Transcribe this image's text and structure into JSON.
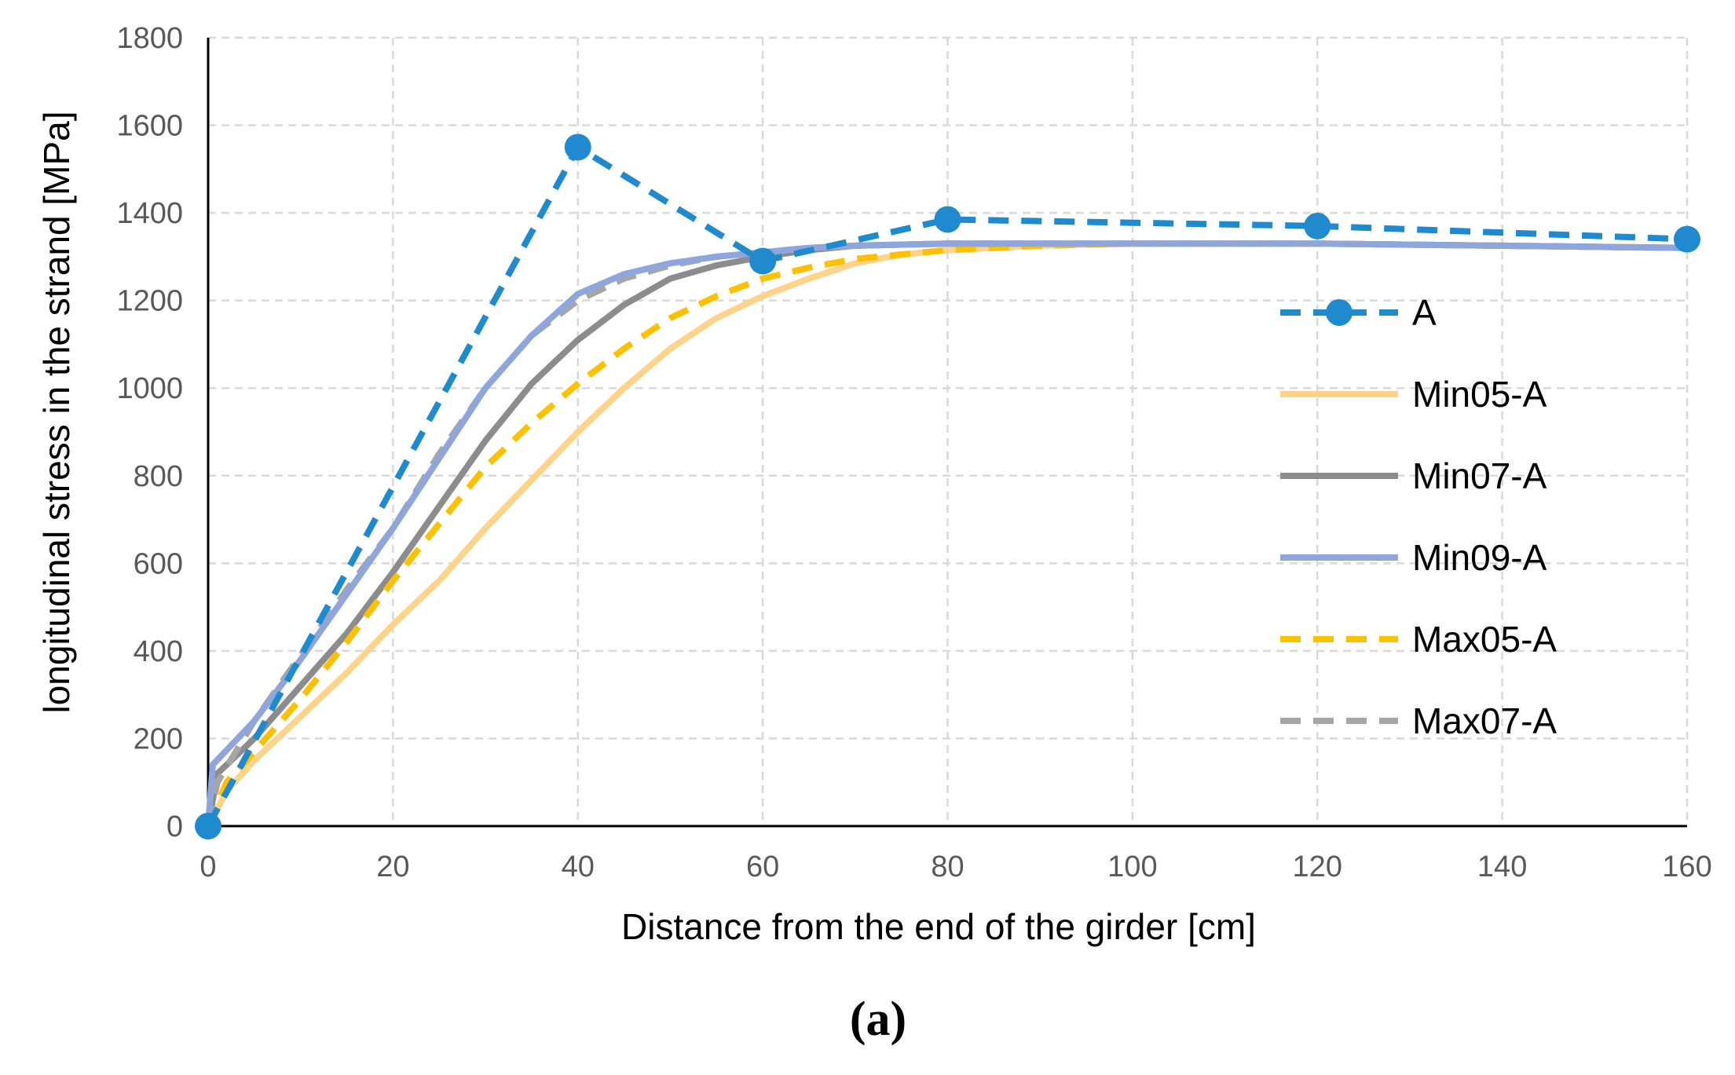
{
  "chart_data": {
    "type": "line",
    "caption": "(a)",
    "xlabel": "Distance from the end of the girder [cm]",
    "ylabel": "longitudinal stress in the strand [MPa]",
    "xlim": [
      0,
      160
    ],
    "ylim": [
      0,
      1800
    ],
    "xticks": [
      0,
      20,
      40,
      60,
      80,
      100,
      120,
      140,
      160
    ],
    "yticks": [
      0,
      200,
      400,
      600,
      800,
      1000,
      1200,
      1400,
      1600,
      1800
    ],
    "grid": true,
    "legend_position": "right",
    "series": [
      {
        "name": "A",
        "color": "#1F8ACD",
        "style": "dashed",
        "markers": true,
        "points": [
          [
            0,
            0
          ],
          [
            40,
            1550
          ],
          [
            60,
            1290
          ],
          [
            80,
            1385
          ],
          [
            120,
            1370
          ],
          [
            160,
            1340
          ]
        ]
      },
      {
        "name": "Min05-A",
        "color": "#FFD38A",
        "style": "solid",
        "markers": false,
        "points": [
          [
            0,
            0
          ],
          [
            2,
            80
          ],
          [
            5,
            150
          ],
          [
            10,
            250
          ],
          [
            15,
            350
          ],
          [
            20,
            460
          ],
          [
            25,
            560
          ],
          [
            30,
            680
          ],
          [
            35,
            790
          ],
          [
            40,
            900
          ],
          [
            45,
            1000
          ],
          [
            50,
            1090
          ],
          [
            55,
            1160
          ],
          [
            60,
            1210
          ],
          [
            65,
            1250
          ],
          [
            70,
            1285
          ],
          [
            75,
            1305
          ],
          [
            80,
            1315
          ],
          [
            90,
            1325
          ],
          [
            100,
            1330
          ],
          [
            120,
            1330
          ],
          [
            140,
            1325
          ],
          [
            160,
            1320
          ]
        ]
      },
      {
        "name": "Min07-A",
        "color": "#8C8C8C",
        "style": "solid",
        "markers": false,
        "points": [
          [
            0,
            0
          ],
          [
            1,
            120
          ],
          [
            5,
            200
          ],
          [
            10,
            320
          ],
          [
            15,
            440
          ],
          [
            20,
            580
          ],
          [
            25,
            730
          ],
          [
            30,
            880
          ],
          [
            35,
            1010
          ],
          [
            40,
            1110
          ],
          [
            45,
            1190
          ],
          [
            50,
            1250
          ],
          [
            55,
            1280
          ],
          [
            60,
            1300
          ],
          [
            65,
            1315
          ],
          [
            70,
            1325
          ],
          [
            80,
            1330
          ],
          [
            100,
            1330
          ],
          [
            120,
            1330
          ],
          [
            140,
            1325
          ],
          [
            160,
            1320
          ]
        ]
      },
      {
        "name": "Min09-A",
        "color": "#8EA6DC",
        "style": "solid",
        "markers": false,
        "points": [
          [
            0,
            0
          ],
          [
            0.5,
            140
          ],
          [
            5,
            240
          ],
          [
            10,
            380
          ],
          [
            15,
            530
          ],
          [
            20,
            680
          ],
          [
            25,
            840
          ],
          [
            30,
            1000
          ],
          [
            35,
            1120
          ],
          [
            40,
            1215
          ],
          [
            45,
            1260
          ],
          [
            50,
            1285
          ],
          [
            55,
            1300
          ],
          [
            60,
            1310
          ],
          [
            65,
            1320
          ],
          [
            70,
            1325
          ],
          [
            80,
            1330
          ],
          [
            100,
            1330
          ],
          [
            120,
            1330
          ],
          [
            140,
            1325
          ],
          [
            160,
            1320
          ]
        ]
      },
      {
        "name": "Max05-A",
        "color": "#FFC000",
        "style": "dashed",
        "markers": false,
        "points": [
          [
            0,
            0
          ],
          [
            2,
            100
          ],
          [
            5,
            170
          ],
          [
            10,
            290
          ],
          [
            15,
            420
          ],
          [
            20,
            560
          ],
          [
            25,
            690
          ],
          [
            30,
            820
          ],
          [
            35,
            920
          ],
          [
            40,
            1010
          ],
          [
            45,
            1090
          ],
          [
            50,
            1160
          ],
          [
            55,
            1210
          ],
          [
            60,
            1250
          ],
          [
            65,
            1275
          ],
          [
            70,
            1295
          ],
          [
            75,
            1305
          ],
          [
            80,
            1315
          ],
          [
            90,
            1325
          ],
          [
            100,
            1330
          ],
          [
            120,
            1330
          ],
          [
            140,
            1325
          ],
          [
            160,
            1320
          ]
        ]
      },
      {
        "name": "Max07-A",
        "color": "#A6A6A6",
        "style": "dashed",
        "markers": false,
        "points": [
          [
            0,
            0
          ],
          [
            1,
            100
          ],
          [
            5,
            240
          ],
          [
            10,
            390
          ],
          [
            15,
            540
          ],
          [
            20,
            680
          ],
          [
            25,
            850
          ],
          [
            30,
            1000
          ],
          [
            35,
            1120
          ],
          [
            40,
            1200
          ],
          [
            45,
            1250
          ],
          [
            50,
            1280
          ],
          [
            55,
            1300
          ],
          [
            60,
            1310
          ],
          [
            65,
            1320
          ],
          [
            70,
            1325
          ],
          [
            80,
            1330
          ],
          [
            100,
            1330
          ],
          [
            120,
            1330
          ],
          [
            140,
            1325
          ],
          [
            160,
            1320
          ]
        ]
      }
    ]
  }
}
